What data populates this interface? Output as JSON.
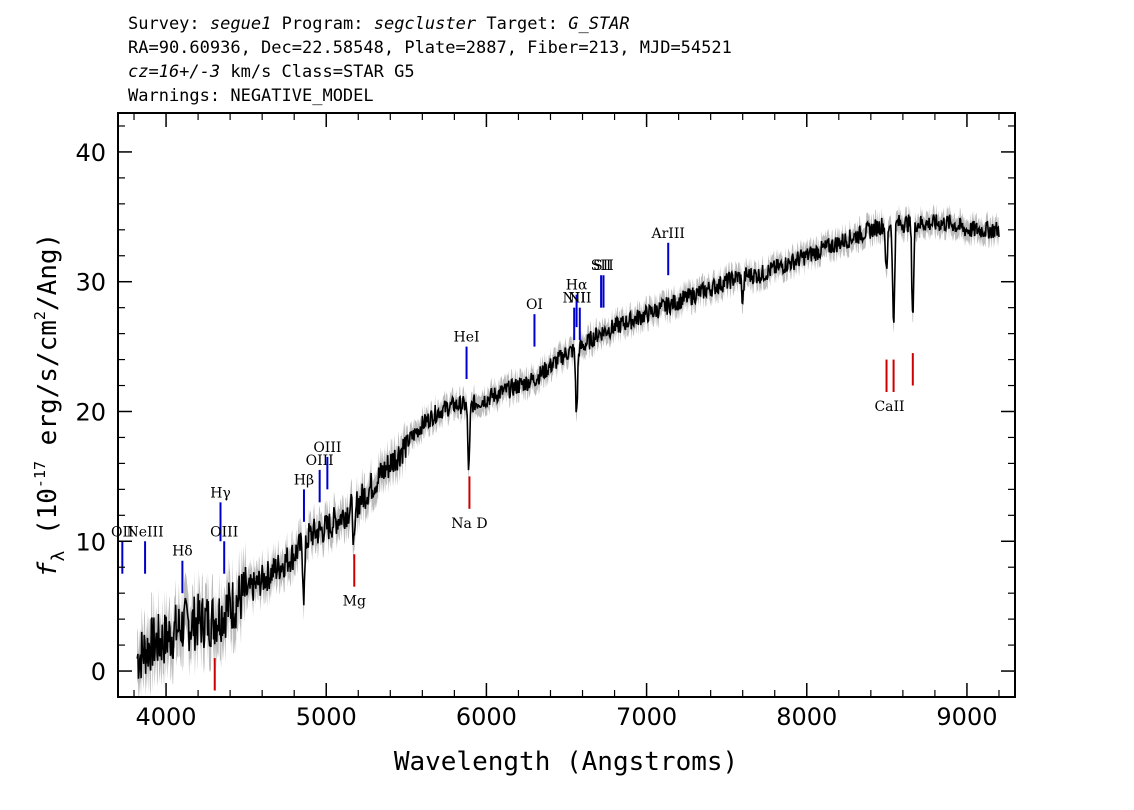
{
  "header": {
    "survey_label": "Survey:",
    "survey": "segue1",
    "program_label": "Program:",
    "program": "segcluster",
    "target_label": "Target:",
    "target": "G_STAR",
    "line2": "RA=90.60936, Dec=22.58548, Plate=2887, Fiber=213, MJD=54521",
    "cz": "cz=16+/-3",
    "cz_rest": " km/s Class=STAR G5",
    "warnings": "Warnings: NEGATIVE_MODEL"
  },
  "chart_data": {
    "type": "line",
    "xlabel": "Wavelength (Angstroms)",
    "ylabel_main": "f",
    "ylabel_sub": "λ",
    "ylabel_rest_a": " (10",
    "ylabel_exp": "-17",
    "ylabel_rest_b": " erg/s/cm",
    "ylabel_exp2": "2",
    "ylabel_rest_c": "/Ang)",
    "xlim": [
      3700,
      9300
    ],
    "ylim": [
      -2,
      43
    ],
    "xticks": [
      4000,
      5000,
      6000,
      7000,
      8000,
      9000
    ],
    "yticks": [
      0,
      10,
      20,
      30,
      40
    ],
    "xtick_labels": [
      "4000",
      "5000",
      "6000",
      "7000",
      "8000",
      "9000"
    ],
    "ytick_labels": [
      "0",
      "10",
      "20",
      "30",
      "40"
    ],
    "colors": {
      "spectrum": "#000000",
      "error": "#bbbbbb",
      "emission": "#0000cc",
      "absorption": "#cc0000"
    },
    "series": [
      {
        "values_note": "",
        "x": [
          3820,
          3900,
          4000,
          4100,
          4200,
          4300,
          4400,
          4500,
          4600,
          4700,
          4800,
          4900,
          5000,
          5100,
          5200,
          5300,
          5400,
          5500,
          5600,
          5700,
          5800,
          5900,
          6000,
          6100,
          6200,
          6300,
          6400,
          6500,
          6600,
          6700,
          6800,
          6900,
          7000,
          7100,
          7200,
          7300,
          7400,
          7500,
          7600,
          7700,
          7800,
          7900,
          8000,
          8100,
          8200,
          8300,
          8400,
          8500,
          8600,
          8700,
          8800,
          8900,
          9000,
          9100,
          9200
        ],
        "y": [
          1.0,
          2.0,
          2.5,
          3.5,
          3.8,
          4.0,
          5.0,
          6.0,
          7.0,
          8.0,
          9.0,
          10.5,
          11.0,
          12.0,
          13.0,
          14.5,
          16.0,
          17.5,
          19.0,
          20.0,
          20.5,
          20.5,
          21.0,
          21.5,
          22.0,
          22.5,
          23.5,
          24.5,
          25.0,
          26.0,
          26.5,
          27.0,
          27.5,
          28.0,
          28.5,
          29.0,
          29.5,
          30.0,
          30.5,
          30.5,
          31.0,
          31.5,
          32.0,
          32.5,
          33.0,
          33.5,
          34.0,
          34.5,
          34.5,
          34.5,
          34.5,
          34.5,
          34.0,
          34.0,
          34.0
        ]
      }
    ],
    "absorption_dips": [
      {
        "x": 4861,
        "depth": 4
      },
      {
        "x": 5175,
        "depth": 3.5
      },
      {
        "x": 5890,
        "depth": 5
      },
      {
        "x": 6563,
        "depth": 5
      },
      {
        "x": 7600,
        "depth": 2
      },
      {
        "x": 8498,
        "depth": 4
      },
      {
        "x": 8542,
        "depth": 8
      },
      {
        "x": 8662,
        "depth": 7
      }
    ],
    "emission_lines": [
      {
        "label": "OII",
        "x": 3727,
        "y0": 7.5,
        "y1": 10
      },
      {
        "label": "NeIII",
        "x": 3869,
        "y0": 7.5,
        "y1": 10
      },
      {
        "label": "Hδ",
        "x": 4102,
        "y0": 6,
        "y1": 8.5
      },
      {
        "label": "Hγ",
        "x": 4340,
        "y0": 10,
        "y1": 13
      },
      {
        "label": "OIII",
        "x": 4363,
        "y0": 7.5,
        "y1": 10
      },
      {
        "label": "Hβ",
        "x": 4861,
        "y0": 11.5,
        "y1": 14
      },
      {
        "label": "OIII",
        "x": 4959,
        "y0": 13,
        "y1": 15.5
      },
      {
        "label": "OIII",
        "x": 5007,
        "y0": 14,
        "y1": 16.5
      },
      {
        "label": "HeI",
        "x": 5876,
        "y0": 22.5,
        "y1": 25
      },
      {
        "label": "OI",
        "x": 6300,
        "y0": 25,
        "y1": 27.5
      },
      {
        "label": "NII",
        "x": 6548,
        "y0": 25.5,
        "y1": 28
      },
      {
        "label": "Hα",
        "x": 6563,
        "y0": 26.5,
        "y1": 29
      },
      {
        "label": "NII",
        "x": 6583,
        "y0": 25.5,
        "y1": 28
      },
      {
        "label": "SII",
        "x": 6716,
        "y0": 28,
        "y1": 30.5
      },
      {
        "label": "SII",
        "x": 6731,
        "y0": 28,
        "y1": 30.5
      },
      {
        "label": "ArIII",
        "x": 7135,
        "y0": 30.5,
        "y1": 33
      }
    ],
    "absorption_lines": [
      {
        "label": "",
        "x": 4304,
        "y0": -1.5,
        "y1": 1
      },
      {
        "label": "Mg",
        "x": 5175,
        "y0": 6.5,
        "y1": 9
      },
      {
        "label": "Na D",
        "x": 5894,
        "y0": 12.5,
        "y1": 15
      },
      {
        "label": "CaII",
        "x": 8498,
        "y0": 21.5,
        "y1": 24
      },
      {
        "label": "",
        "x": 8542,
        "y0": 21.5,
        "y1": 24
      },
      {
        "label": "",
        "x": 8662,
        "y0": 22,
        "y1": 24.5
      }
    ]
  }
}
